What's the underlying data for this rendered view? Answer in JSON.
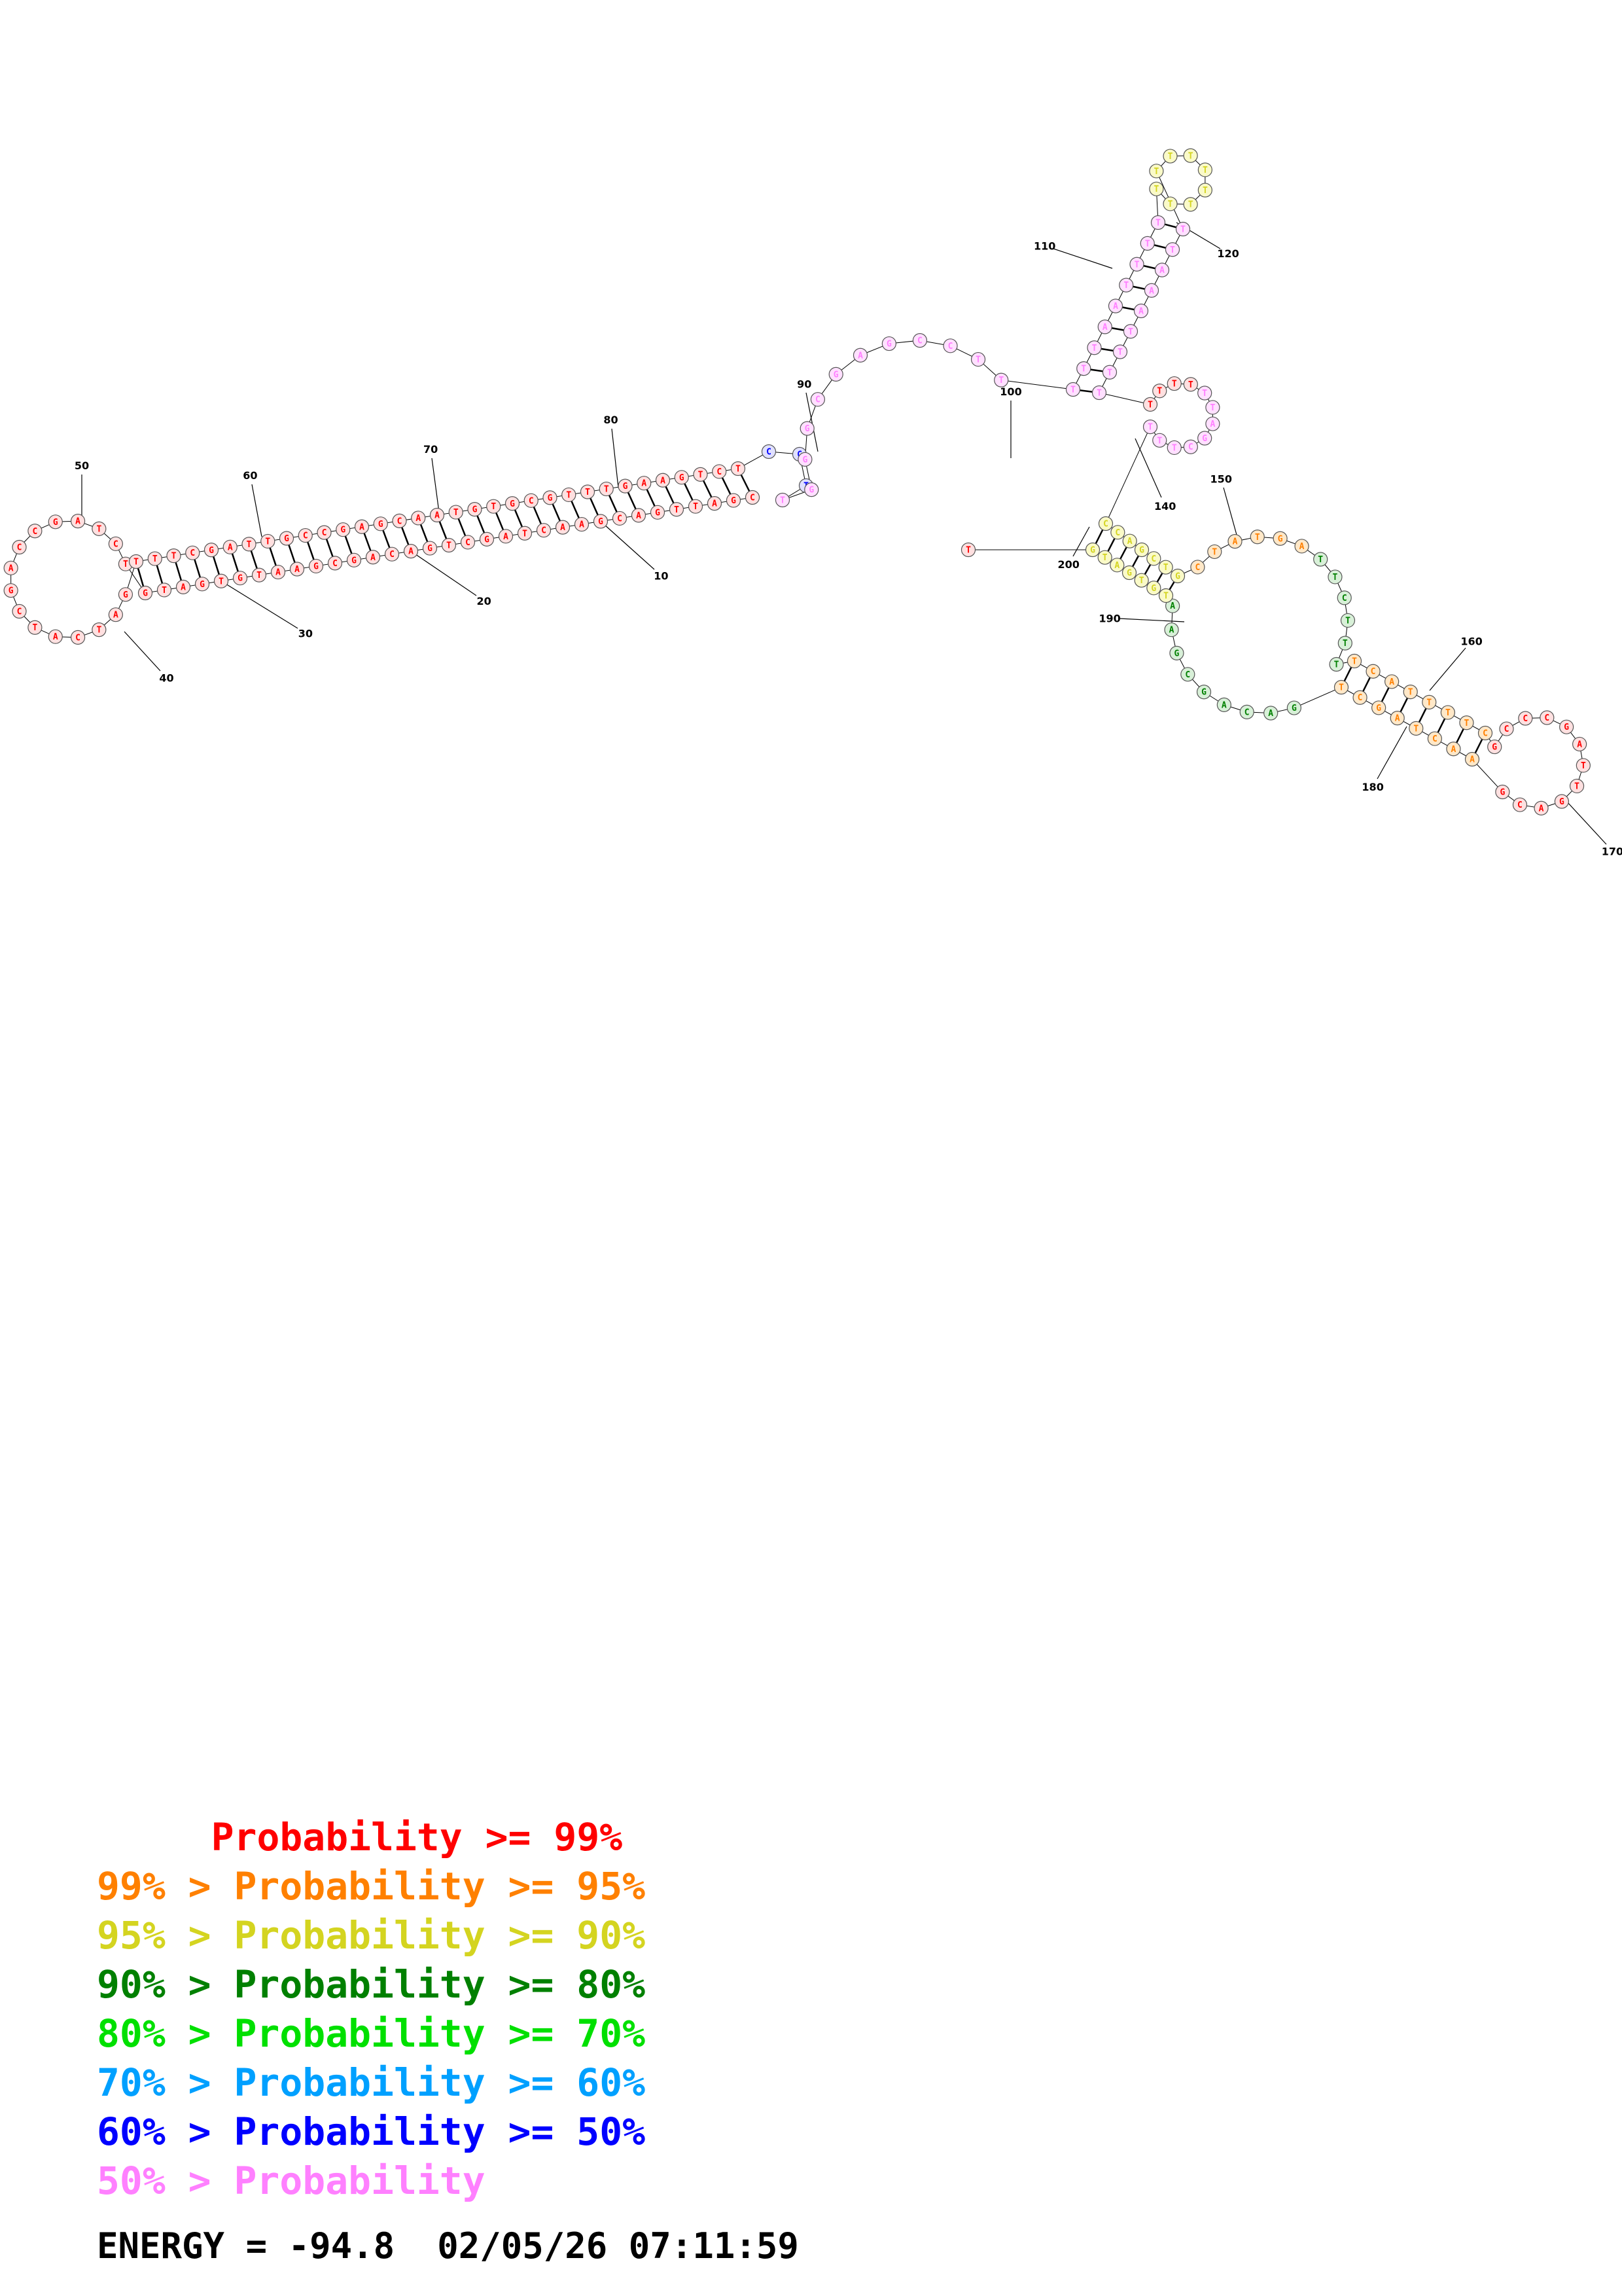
{
  "legend": {
    "items": [
      {
        "prefix": "     ",
        "text": "Probability >= 99%",
        "color": "#ff0000"
      },
      {
        "prefix": "99% > ",
        "text": "Probability >= 95%",
        "color": "#ff8000"
      },
      {
        "prefix": "95% > ",
        "text": "Probability >= 90%",
        "color": "#d4d420"
      },
      {
        "prefix": "90% > ",
        "text": "Probability >= 80%",
        "color": "#008000"
      },
      {
        "prefix": "80% > ",
        "text": "Probability >= 70%",
        "color": "#00e000"
      },
      {
        "prefix": "70% > ",
        "text": "Probability >= 60%",
        "color": "#00a0ff"
      },
      {
        "prefix": "60% > ",
        "text": "Probability >= 50%",
        "color": "#0000ff"
      },
      {
        "prefix": "50% > ",
        "text": "Probability",
        "color": "#ff80ff"
      }
    ]
  },
  "footer": {
    "energy_label": "ENERGY = -94.8",
    "timestamp": "02/05/26 07:11:59"
  },
  "position_labels": [
    "10",
    "20",
    "30",
    "40",
    "50",
    "60",
    "70",
    "80",
    "90",
    "100",
    "110",
    "120",
    "140",
    "150",
    "160",
    "170",
    "180",
    "190",
    "200"
  ],
  "sequence": {
    "stem_5prime": "CGATTGACGAACTAGCTGACAGCGAATGTGATGT",
    "loop": "CTAGCCAGCTACTAGT",
    "stem_3prime": "TTCGATTGCCGAGCAATGTGCGTTTGAAGTCTCCTTGG",
    "tail_region": "GCGAGCCTTTTTAATTTTTTTTTTTTTTAAATTTTTTTTTTAGCTTTCCAGCTGCTATGATTCTTTTCATTTTCGCC"
  }
}
